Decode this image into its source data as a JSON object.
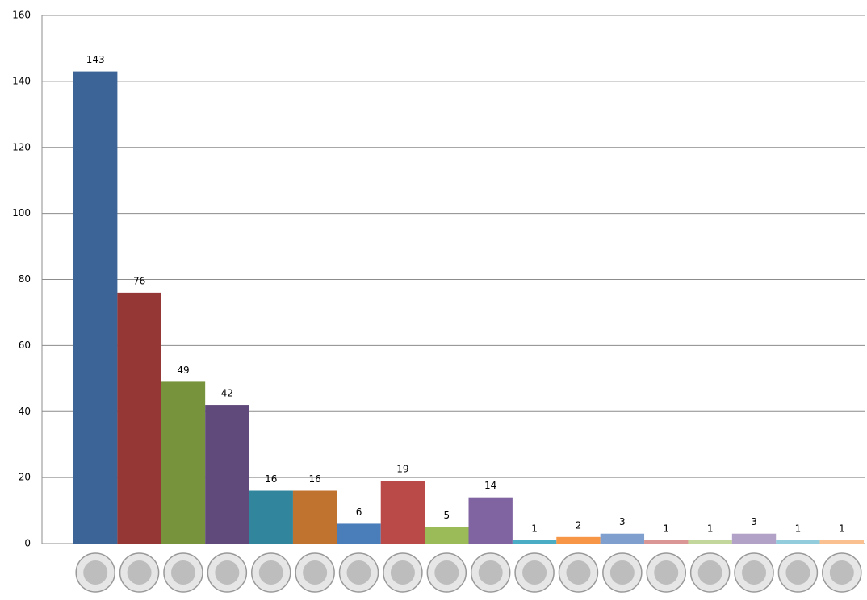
{
  "chart_data": {
    "type": "bar",
    "categories": [
      null,
      null,
      null,
      null,
      null,
      null,
      null,
      null,
      null,
      null,
      null,
      null,
      null,
      null,
      null,
      null,
      null,
      null
    ],
    "values": [
      143,
      76,
      49,
      42,
      16,
      16,
      6,
      19,
      5,
      14,
      1,
      2,
      3,
      1,
      1,
      3,
      1,
      1
    ],
    "colors": [
      "#3c6496",
      "#953735",
      "#77933c",
      "#604a7b",
      "#31859c",
      "#c0722f",
      "#4a7ebb",
      "#b94a48",
      "#9bbb59",
      "#8064a2",
      "#4bacc6",
      "#f79646",
      "#7f9fcf",
      "#d99694",
      "#c3d69b",
      "#b3a2c7",
      "#93cddd",
      "#fac090"
    ],
    "ylim": [
      0,
      160
    ],
    "yticks": [
      0,
      20,
      40,
      60,
      80,
      100,
      120,
      140,
      160
    ],
    "grid": true
  }
}
